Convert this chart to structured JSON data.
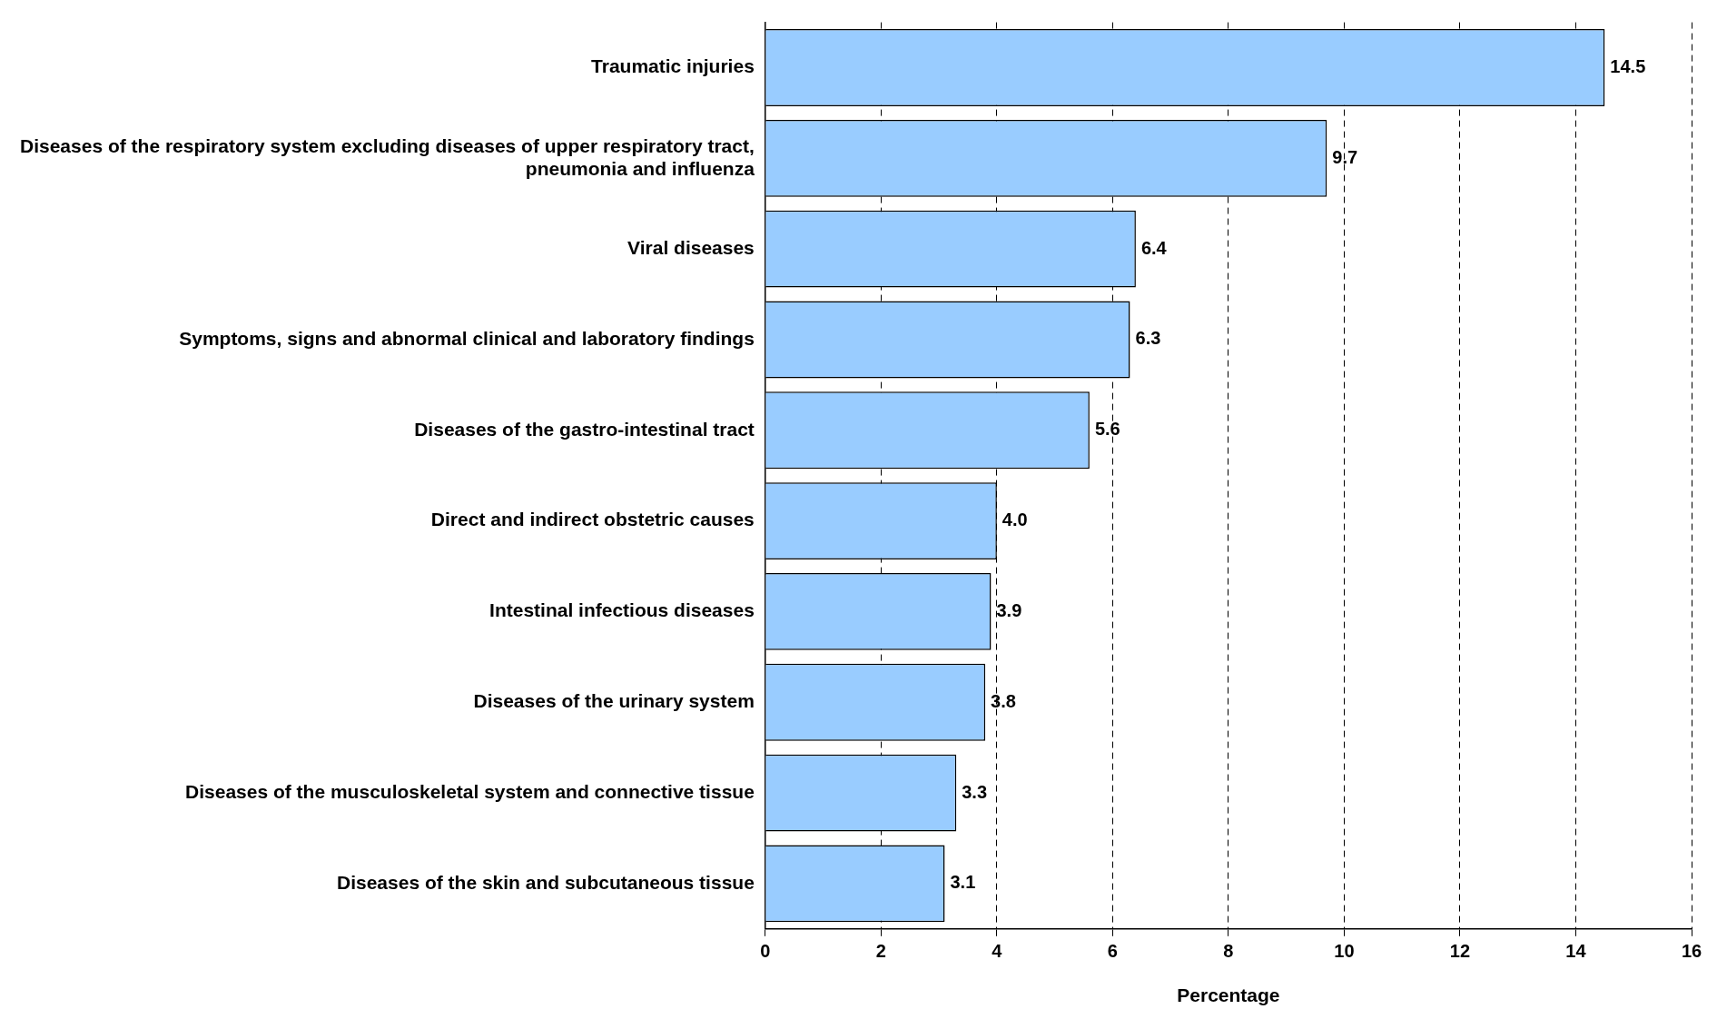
{
  "chart_data": {
    "type": "bar",
    "orientation": "horizontal",
    "xlabel": "Percentage",
    "categories": [
      "Traumatic injuries",
      "Diseases of the respiratory system excluding diseases of upper respiratory tract, pneumonia and influenza",
      "Viral diseases",
      "Symptoms, signs and abnormal clinical and laboratory findings",
      "Diseases of the gastro-intestinal tract",
      "Direct and indirect obstetric causes",
      "Intestinal infectious diseases",
      "Diseases of the urinary system",
      "Diseases of the musculoskeletal system and connective tissue",
      "Diseases of the skin and subcutaneous tissue"
    ],
    "values": [
      14.5,
      9.7,
      6.4,
      6.3,
      5.6,
      4.0,
      3.9,
      3.8,
      3.3,
      3.1
    ],
    "value_labels": [
      "14.5",
      "9.7",
      "6.4",
      "6.3",
      "5.6",
      "4.0",
      "3.9",
      "3.8",
      "3.3",
      "3.1"
    ],
    "color": "#99ccff",
    "xlim": [
      0,
      16
    ],
    "xticks": [
      0,
      2,
      4,
      6,
      8,
      10,
      12,
      14,
      16
    ],
    "grid": "x",
    "legend": false
  }
}
